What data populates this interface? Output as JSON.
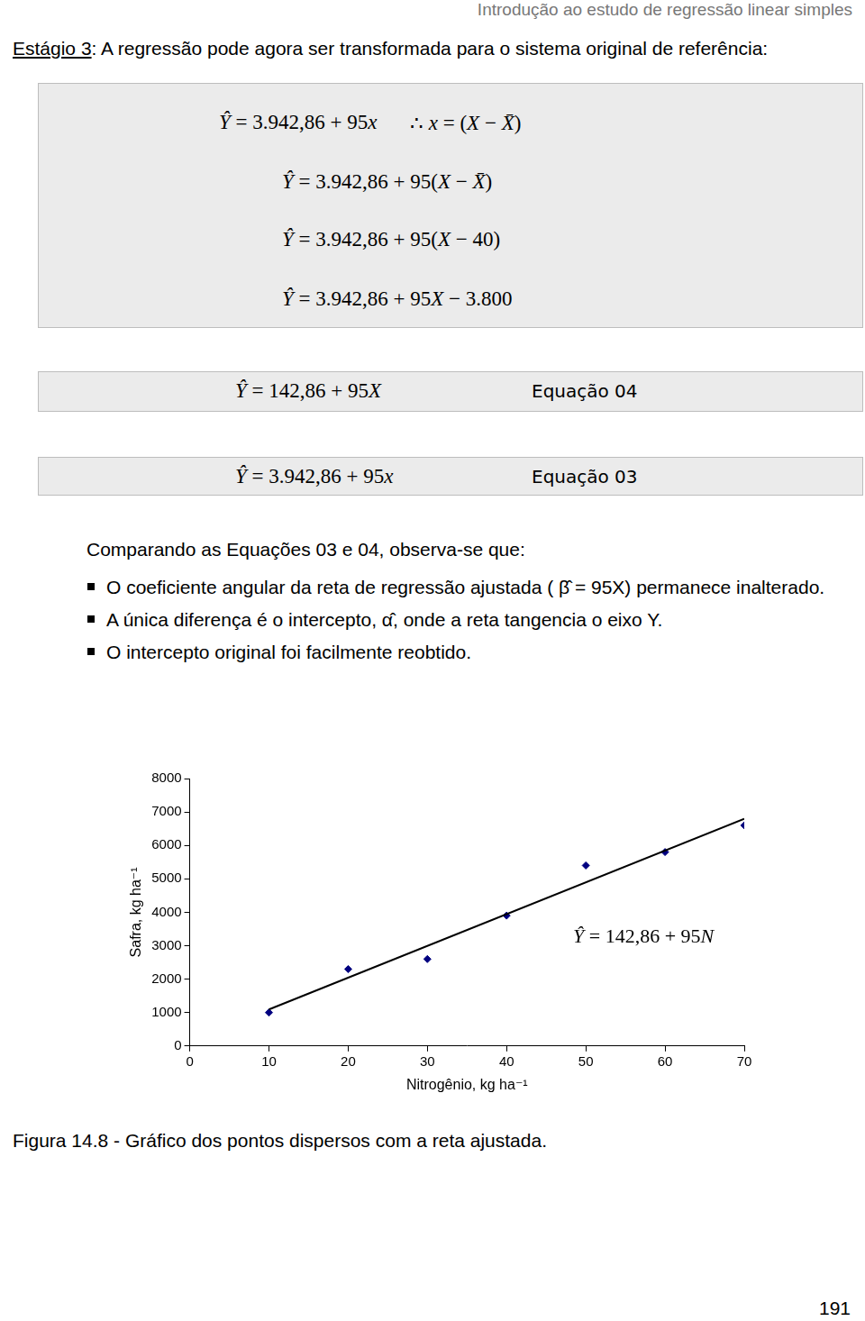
{
  "header": "Introdução ao estudo de regressão linear simples",
  "intro": {
    "label": "Estágio 3",
    "text": ": A regressão pode agora ser transformada para o sistema original de referência:"
  },
  "derivation": [
    {
      "equation": "Ŷ = 3.942,86 + 95x",
      "note": "∴  x = (X − X̄)"
    },
    {
      "equation": "Ŷ = 3.942,86 + 95(X − X̄)"
    },
    {
      "equation": "Ŷ = 3.942,86 + 95(X − 40)"
    },
    {
      "equation": "Ŷ = 3.942,86 + 95X − 3.800"
    }
  ],
  "equations": [
    {
      "equation": "Ŷ = 142,86 + 95X",
      "label": "Equação 04"
    },
    {
      "equation": "Ŷ = 3.942,86 + 95x",
      "label": "Equação 03"
    }
  ],
  "comparison": {
    "text": "Comparando as Equações 03 e 04, observa-se que:",
    "bullets": [
      "O coeficiente angular da reta de regressão ajustada ( β̂ = 95X) permanece inalterado.",
      "A única diferença é o intercepto, α̂, onde a reta tangencia o eixo Y.",
      "O intercepto original foi facilmente reobtido."
    ]
  },
  "chart_data": {
    "type": "scatter",
    "x_label": "Nitrogênio, kg ha⁻¹",
    "y_label": "Safra, kg ha⁻¹",
    "x": [
      10,
      20,
      30,
      40,
      50,
      60,
      70
    ],
    "values": [
      1000,
      2300,
      2600,
      3900,
      5400,
      5800,
      6600
    ],
    "color": "#000080",
    "marker": "diamond",
    "fit_line": {
      "x": [
        10,
        70
      ],
      "values": [
        1092.86,
        6792.86
      ],
      "color": "#000000",
      "label": "Ŷ = 142,86 + 95N"
    },
    "xlim": [
      0,
      70
    ],
    "xticks": [
      0,
      10,
      20,
      30,
      40,
      50,
      60,
      70
    ],
    "ylim": [
      0,
      8000
    ],
    "yticks": [
      0,
      1000,
      2000,
      3000,
      4000,
      5000,
      6000,
      7000,
      8000
    ],
    "grid": false
  },
  "figure_caption": "Figura 14.8 - Gráfico dos pontos dispersos com a reta ajustada.",
  "page_number": 191
}
